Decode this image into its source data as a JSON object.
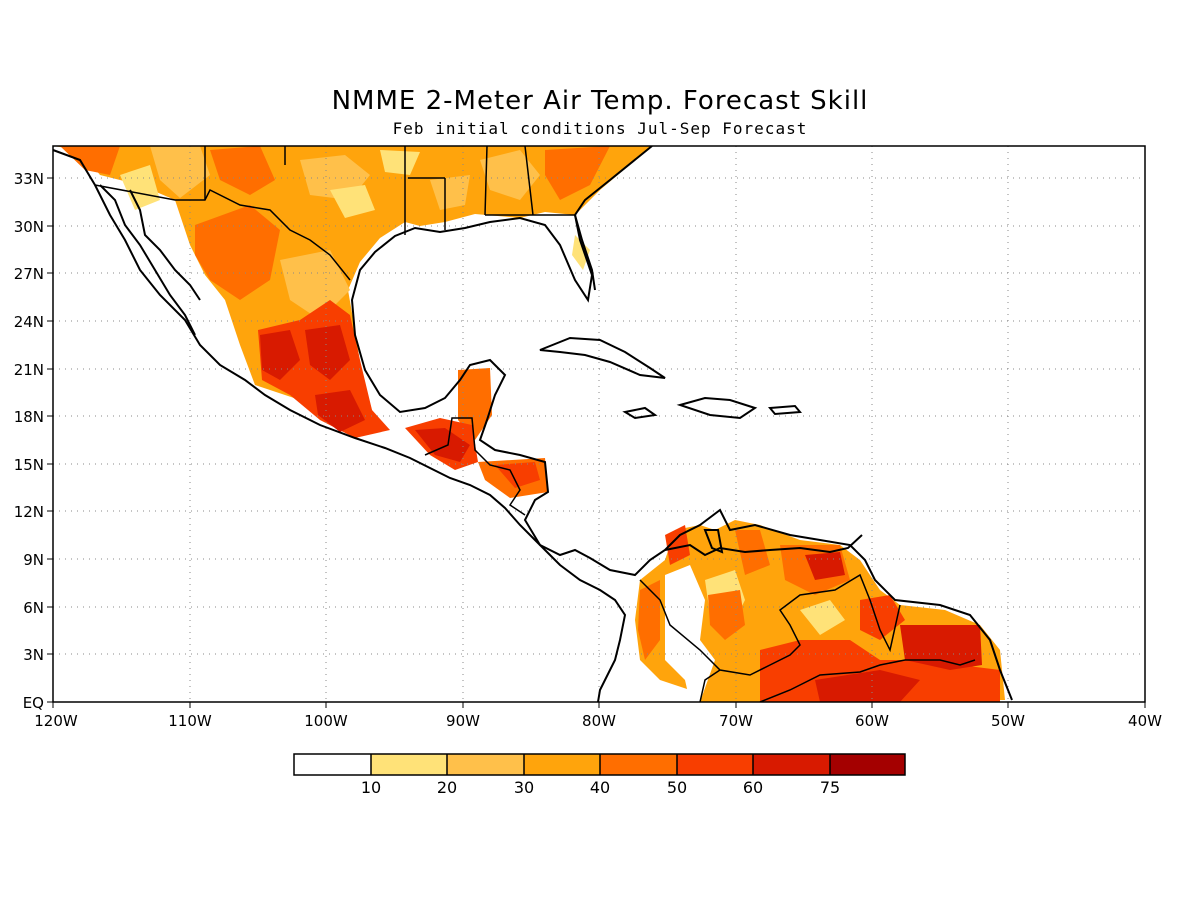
{
  "title": "NMME 2-Meter Air Temp. Forecast Skill",
  "subtitle": "Feb initial conditions  Jul-Sep Forecast",
  "map": {
    "lon_range": [
      -120,
      -40
    ],
    "lat_range": [
      0,
      35
    ],
    "grid": "dotted",
    "x_ticks": [
      {
        "lon": -120,
        "label": "120W"
      },
      {
        "lon": -110,
        "label": "110W"
      },
      {
        "lon": -100,
        "label": "100W"
      },
      {
        "lon": -90,
        "label": "90W"
      },
      {
        "lon": -80,
        "label": "80W"
      },
      {
        "lon": -70,
        "label": "70W"
      },
      {
        "lon": -60,
        "label": "60W"
      },
      {
        "lon": -50,
        "label": "50W"
      },
      {
        "lon": -40,
        "label": "40W"
      }
    ],
    "y_ticks": [
      {
        "lat": 0,
        "label": "EQ"
      },
      {
        "lat": 3,
        "label": "3N"
      },
      {
        "lat": 6,
        "label": "6N"
      },
      {
        "lat": 9,
        "label": "9N"
      },
      {
        "lat": 12,
        "label": "12N"
      },
      {
        "lat": 15,
        "label": "15N"
      },
      {
        "lat": 18,
        "label": "18N"
      },
      {
        "lat": 21,
        "label": "21N"
      },
      {
        "lat": 24,
        "label": "24N"
      },
      {
        "lat": 27,
        "label": "27N"
      },
      {
        "lat": 30,
        "label": "30N"
      },
      {
        "lat": 33,
        "label": "33N"
      }
    ]
  },
  "colorbar": {
    "colors": [
      "#ffffff",
      "#ffe278",
      "#ffc04a",
      "#ffa40c",
      "#ff6e00",
      "#f83e00",
      "#d81a00",
      "#a40000"
    ],
    "labels": [
      "10",
      "20",
      "30",
      "40",
      "50",
      "60",
      "75"
    ]
  }
}
